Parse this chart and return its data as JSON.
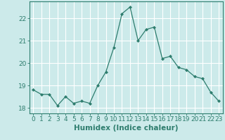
{
  "x": [
    0,
    1,
    2,
    3,
    4,
    5,
    6,
    7,
    8,
    9,
    10,
    11,
    12,
    13,
    14,
    15,
    16,
    17,
    18,
    19,
    20,
    21,
    22,
    23
  ],
  "y": [
    18.8,
    18.6,
    18.6,
    18.1,
    18.5,
    18.2,
    18.3,
    18.2,
    19.0,
    19.6,
    20.7,
    22.2,
    22.5,
    21.0,
    21.5,
    21.6,
    20.2,
    20.3,
    19.8,
    19.7,
    19.4,
    19.3,
    18.7,
    18.3
  ],
  "xlabel": "Humidex (Indice chaleur)",
  "ylim": [
    17.75,
    22.75
  ],
  "xlim": [
    -0.5,
    23.5
  ],
  "yticks": [
    18,
    19,
    20,
    21,
    22
  ],
  "xticks": [
    0,
    1,
    2,
    3,
    4,
    5,
    6,
    7,
    8,
    9,
    10,
    11,
    12,
    13,
    14,
    15,
    16,
    17,
    18,
    19,
    20,
    21,
    22,
    23
  ],
  "line_color": "#2e7d6e",
  "marker": "D",
  "marker_size": 2,
  "bg_color": "#cceaea",
  "grid_color": "#ffffff",
  "axis_color": "#2e7d6e",
  "tick_color": "#2e7d6e",
  "label_color": "#2e7d6e",
  "xlabel_fontsize": 7.5,
  "tick_fontsize": 6.5
}
